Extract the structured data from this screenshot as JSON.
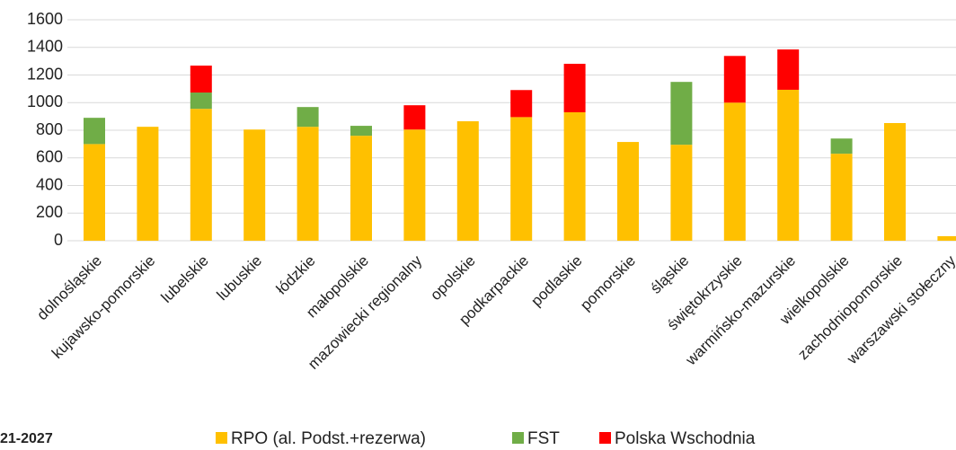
{
  "chart_data": {
    "type": "stacked_bar",
    "caption": "21-2027",
    "categories": [
      "dolnośląskie",
      "kujawsko-pomorskie",
      "lubelskie",
      "lubuskie",
      "łódzkie",
      "małopolskie",
      "mazowiecki regionalny",
      "opolskie",
      "podkarpackie",
      "podlaskie",
      "pomorskie",
      "śląskie",
      "świętokrzyskie",
      "warmińsko-mazurskie",
      "wielkopolskie",
      "zachodniopomorskie",
      "warszawski stołeczny"
    ],
    "series": [
      {
        "name": "RPO (al. Podst.+rezerwa)",
        "color": "#FFC000",
        "values": [
          700,
          825,
          955,
          805,
          825,
          760,
          805,
          865,
          895,
          930,
          715,
          695,
          1000,
          1093,
          630,
          852,
          33
        ]
      },
      {
        "name": "FST",
        "color": "#70AD47",
        "values": [
          190,
          null,
          118,
          null,
          143,
          72,
          null,
          null,
          null,
          null,
          null,
          455,
          null,
          null,
          110,
          null,
          null
        ]
      },
      {
        "name": "Polska Wschodnia",
        "color": "#FF0000",
        "values": [
          null,
          null,
          195,
          null,
          null,
          null,
          176,
          null,
          196,
          351,
          null,
          null,
          338,
          292,
          null,
          null,
          null
        ]
      }
    ],
    "ylim": [
      0,
      1600
    ],
    "yticks": [
      0,
      200,
      400,
      600,
      800,
      1000,
      1200,
      1400,
      1600
    ],
    "grid": true
  }
}
